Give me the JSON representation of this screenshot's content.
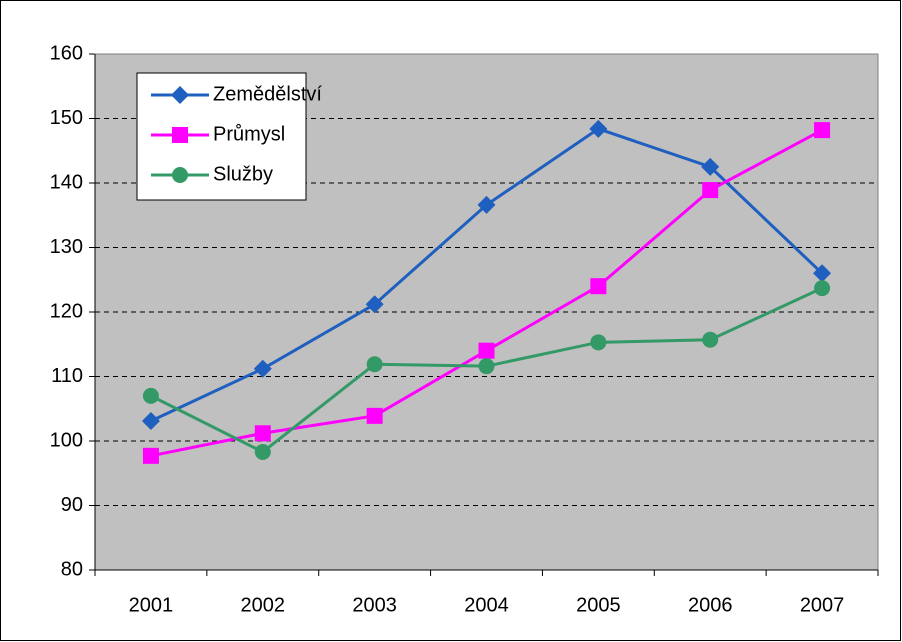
{
  "chart_data": {
    "type": "line",
    "categories": [
      "2001",
      "2002",
      "2003",
      "2004",
      "2005",
      "2006",
      "2007"
    ],
    "series": [
      {
        "name": "Zemědělství",
        "color": "#1f5fbf",
        "marker": "diamond",
        "values": [
          103.1,
          111.2,
          121.2,
          136.6,
          148.4,
          142.5,
          126.0
        ]
      },
      {
        "name": "Průmysl",
        "color": "#ff00ff",
        "marker": "square",
        "values": [
          97.7,
          101.2,
          103.9,
          114.0,
          124.0,
          138.9,
          148.2
        ]
      },
      {
        "name": "Služby",
        "color": "#339966",
        "marker": "circle",
        "values": [
          107.0,
          98.3,
          111.9,
          111.6,
          115.3,
          115.7,
          123.7
        ]
      }
    ],
    "ylim": [
      80,
      160
    ],
    "yticks": [
      80,
      90,
      100,
      110,
      120,
      130,
      140,
      150,
      160
    ],
    "grid": true,
    "legend": "upper left"
  }
}
